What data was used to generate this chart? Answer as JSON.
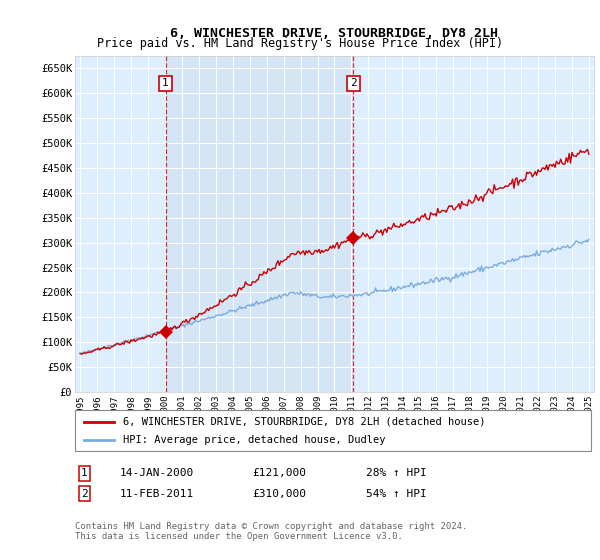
{
  "title": "6, WINCHESTER DRIVE, STOURBRIDGE, DY8 2LH",
  "subtitle": "Price paid vs. HM Land Registry's House Price Index (HPI)",
  "ylabel_ticks": [
    "£0",
    "£50K",
    "£100K",
    "£150K",
    "£200K",
    "£250K",
    "£300K",
    "£350K",
    "£400K",
    "£450K",
    "£500K",
    "£550K",
    "£600K",
    "£650K"
  ],
  "ylim": [
    0,
    675000
  ],
  "xlim_start": 1994.7,
  "xlim_end": 2025.3,
  "sale1_x": 2000.04,
  "sale1_y": 121000,
  "sale2_x": 2011.12,
  "sale2_y": 310000,
  "sale1_date": "14-JAN-2000",
  "sale1_price": "£121,000",
  "sale1_hpi": "28% ↑ HPI",
  "sale2_date": "11-FEB-2011",
  "sale2_price": "£310,000",
  "sale2_hpi": "54% ↑ HPI",
  "legend_line1": "6, WINCHESTER DRIVE, STOURBRIDGE, DY8 2LH (detached house)",
  "legend_line2": "HPI: Average price, detached house, Dudley",
  "footnote": "Contains HM Land Registry data © Crown copyright and database right 2024.\nThis data is licensed under the Open Government Licence v3.0.",
  "line_color_red": "#cc0000",
  "line_color_blue": "#7aaddd",
  "bg_plot": "#ddeeff",
  "bg_between": "#d0e8f8",
  "grid_color": "#ffffff",
  "marker_box_color": "#cc0000"
}
